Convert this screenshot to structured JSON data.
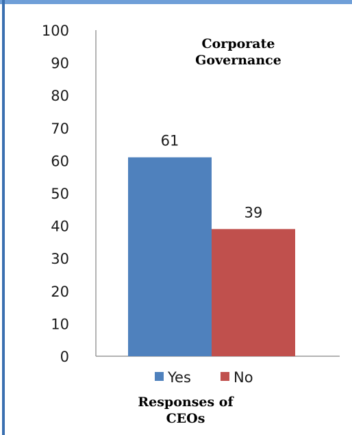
{
  "chart_data": {
    "type": "bar",
    "title_lines": [
      "Corporate",
      "Governance"
    ],
    "xlabel_lines": [
      "Responses of",
      "CEOs"
    ],
    "ylabel": "",
    "ylim": [
      0,
      100
    ],
    "yticks": [
      0,
      10,
      20,
      30,
      40,
      50,
      60,
      70,
      80,
      90,
      100
    ],
    "grid": false,
    "legend_position": "bottom",
    "series": [
      {
        "name": "Yes",
        "value": 61,
        "color": "#4f81bd"
      },
      {
        "name": "No",
        "value": 39,
        "color": "#c0504d"
      }
    ]
  },
  "frame_colors": {
    "top_border": "#6f9fd8",
    "left_border": "#3a6fb0"
  }
}
